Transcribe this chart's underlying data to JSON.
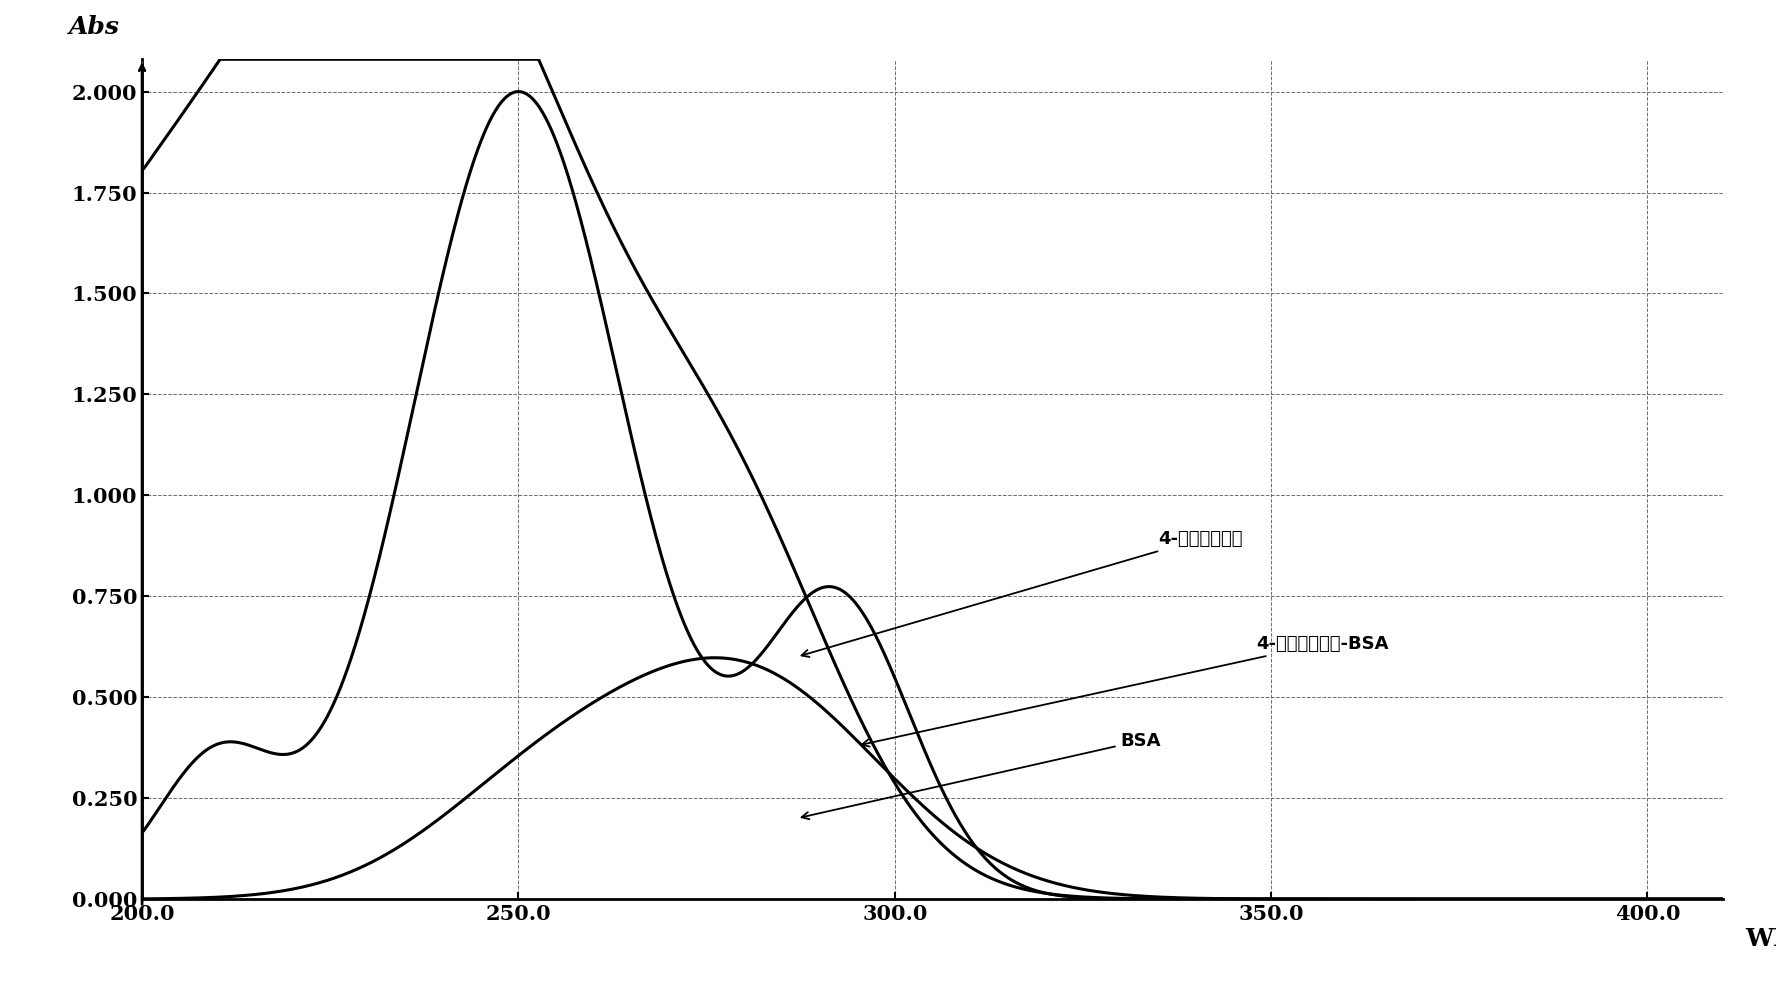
{
  "title": "",
  "xlabel": "WL",
  "ylabel": "Abs",
  "xlim": [
    200,
    410
  ],
  "ylim": [
    0.0,
    2.08
  ],
  "xticks": [
    200.0,
    250.0,
    300.0,
    350.0,
    400.0
  ],
  "yticks": [
    0.0,
    0.25,
    0.5,
    0.75,
    1.0,
    1.25,
    1.5,
    1.75,
    2.0
  ],
  "background_color": "#ffffff",
  "curve1_label": "4-氨基二芯甲酮",
  "curve2_label": "4-氨基二芯甲酮-BSA",
  "curve3_label": "BSA",
  "curve1_color": "#000000",
  "curve2_color": "#000000",
  "curve3_color": "#000000",
  "lw": 2.2,
  "grid_linestyle": "--",
  "grid_color": "#555555",
  "grid_lw": 0.7,
  "tick_fontsize": 15,
  "label_fontsize": 18
}
